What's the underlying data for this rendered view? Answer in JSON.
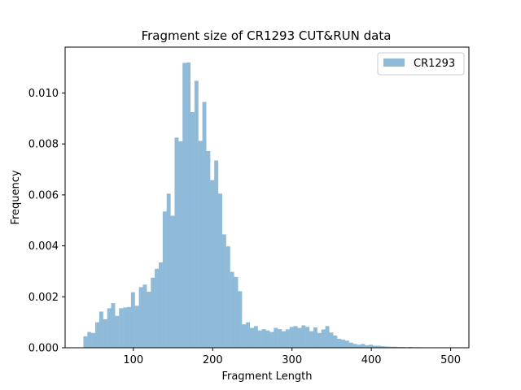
{
  "chart_data": {
    "type": "bar",
    "title": "Fragment size of CR1293 CUT&RUN data",
    "xlabel": "Fragment Length",
    "ylabel": "Frequency",
    "xlim": [
      14,
      523
    ],
    "ylim": [
      0,
      0.0118
    ],
    "grid": false,
    "legend_position": "top-right",
    "bar_color": "#1f77b4",
    "bar_alpha": 0.5,
    "x_ticks": [
      100,
      200,
      300,
      400,
      500
    ],
    "x_tick_labels": [
      "100",
      "200",
      "300",
      "400",
      "500"
    ],
    "y_ticks": [
      0,
      0.002,
      0.004,
      0.006,
      0.008,
      0.01
    ],
    "y_tick_labels": [
      "0.000",
      "0.002",
      "0.004",
      "0.006",
      "0.008",
      "0.010"
    ],
    "bin_start": 37,
    "bin_width": 5,
    "series": [
      {
        "name": "CR1293",
        "values": [
          0.00045,
          0.00062,
          0.00058,
          0.001,
          0.00142,
          0.00112,
          0.00155,
          0.00175,
          0.00125,
          0.00155,
          0.00158,
          0.0016,
          0.00218,
          0.00165,
          0.00238,
          0.00248,
          0.0022,
          0.00275,
          0.0031,
          0.00335,
          0.00535,
          0.00605,
          0.00518,
          0.00825,
          0.0081,
          0.01118,
          0.0112,
          0.00925,
          0.01048,
          0.00812,
          0.00965,
          0.00772,
          0.00658,
          0.00735,
          0.00605,
          0.00445,
          0.00398,
          0.00298,
          0.00278,
          0.00222,
          0.00092,
          0.001,
          0.00078,
          0.00085,
          0.00068,
          0.00073,
          0.00068,
          0.00062,
          0.00078,
          0.00073,
          0.00065,
          0.00072,
          0.00082,
          0.00085,
          0.00078,
          0.00088,
          0.00082,
          0.00065,
          0.0008,
          0.00058,
          0.00072,
          0.00085,
          0.0006,
          0.00048,
          0.00035,
          0.00032,
          0.00028,
          0.0002,
          0.00015,
          0.00012,
          0.00015,
          0.0001,
          0.00012,
          8e-05,
          8e-05,
          6e-05,
          5e-05,
          4e-05,
          4e-05,
          3e-05,
          3e-05,
          2e-05,
          3e-05,
          2e-05,
          2e-05,
          1e-05,
          1e-05,
          1e-05,
          1e-05,
          1e-05,
          1e-05,
          1e-05,
          1e-05
        ]
      }
    ]
  }
}
